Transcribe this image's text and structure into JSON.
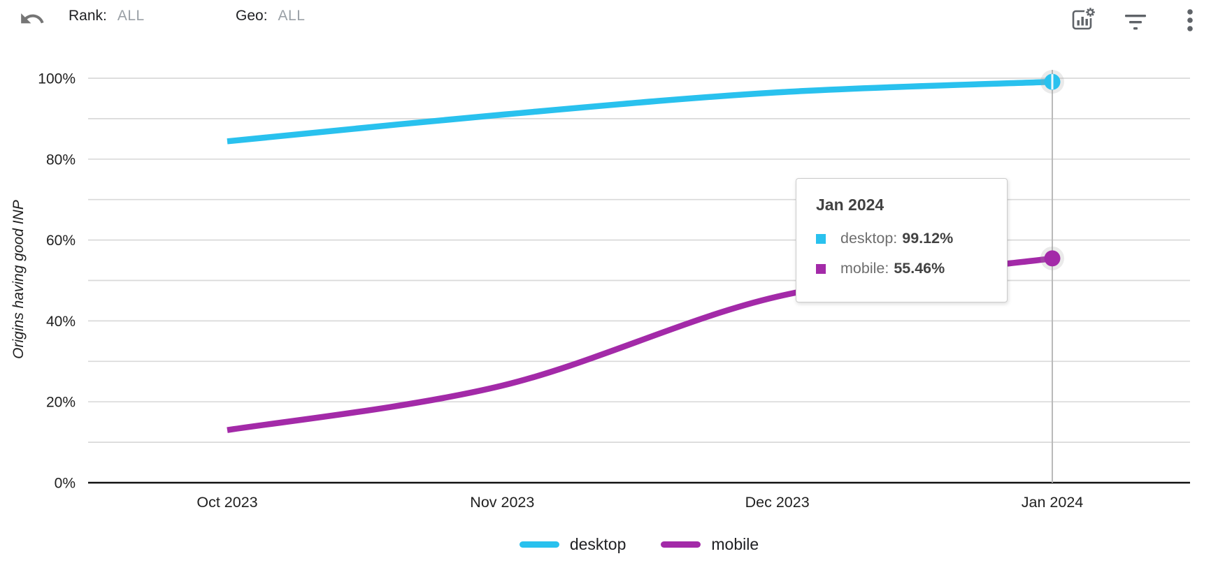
{
  "header": {
    "undo_icon": "undo-arrow",
    "rank": {
      "label": "Rank:",
      "value": "ALL"
    },
    "geo": {
      "label": "Geo:",
      "value": "ALL"
    },
    "action_icons": [
      "chart-settings",
      "filter-list",
      "more-vertical"
    ]
  },
  "chart_data": {
    "type": "line",
    "title": "",
    "xlabel": "",
    "ylabel": "Origins having good INP",
    "x": [
      "Oct 2023",
      "Nov 2023",
      "Dec 2023",
      "Jan 2024"
    ],
    "series": [
      {
        "name": "desktop",
        "color": "#29c1ee",
        "values": [
          84.4,
          91.0,
          96.5,
          99.12
        ]
      },
      {
        "name": "mobile",
        "color": "#a32aa8",
        "values": [
          13.0,
          24.0,
          46.0,
          55.46
        ]
      }
    ],
    "ylim": [
      0,
      100
    ],
    "yticks": [
      0,
      20,
      40,
      60,
      80,
      100
    ],
    "ytick_labels": [
      "0%",
      "20%",
      "40%",
      "60%",
      "80%",
      "100%"
    ],
    "grid": "horizontal gridlines every 10%",
    "legend_position": "bottom-center",
    "hovered_point": {
      "x": "Jan 2024",
      "crosshair": true
    },
    "tooltip": {
      "title": "Jan 2024",
      "rows": [
        {
          "label": "desktop:",
          "value": "99.12%"
        },
        {
          "label": "mobile:",
          "value": "55.46%"
        }
      ]
    }
  },
  "colors": {
    "gridline": "#d9d9d9",
    "axis_line": "#111111",
    "crosshair": "#b9b9b9",
    "tick_text": "#1f1f1f",
    "icon_gray": "#5f6368",
    "filter_value_gray": "#9aa0a6",
    "tooltip_title": "#424242"
  }
}
